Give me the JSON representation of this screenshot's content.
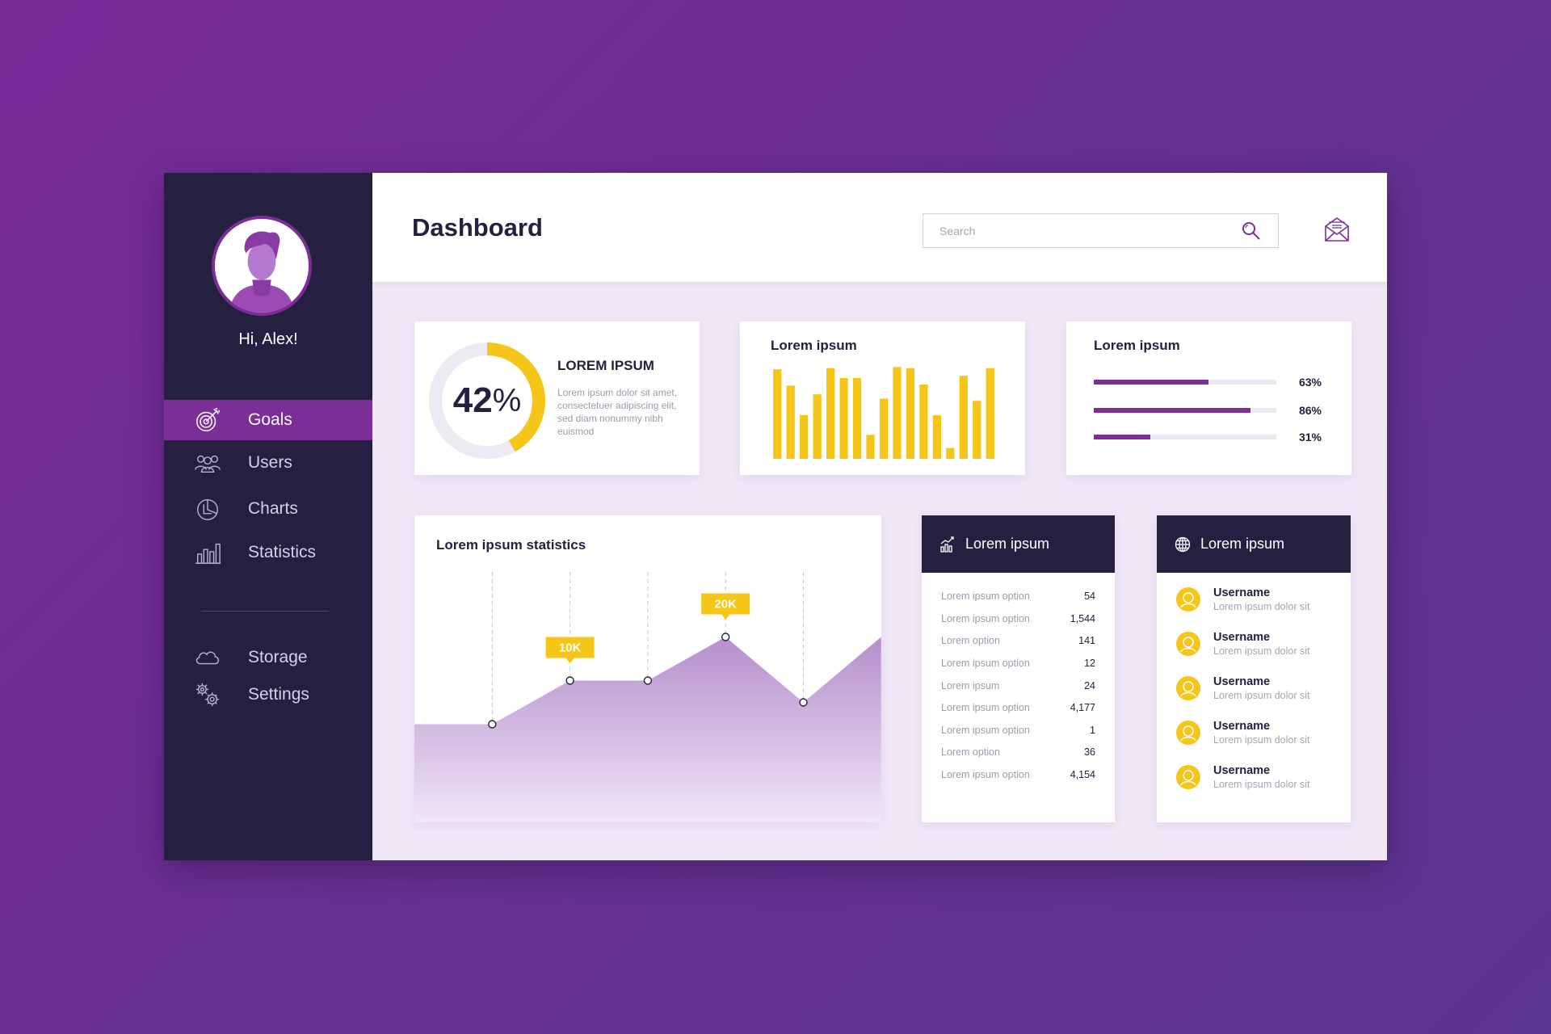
{
  "sidebar": {
    "greeting": "Hi, Alex!",
    "nav_main": [
      {
        "label": "Goals",
        "icon": "target-icon",
        "active": true
      },
      {
        "label": "Users",
        "icon": "users-icon",
        "active": false
      },
      {
        "label": "Charts",
        "icon": "pie-chart-icon",
        "active": false
      },
      {
        "label": "Statistics",
        "icon": "bar-chart-icon",
        "active": false
      }
    ],
    "nav_secondary": [
      {
        "label": "Storage",
        "icon": "cloud-icon"
      },
      {
        "label": "Settings",
        "icon": "gears-icon"
      }
    ]
  },
  "header": {
    "title": "Dashboard",
    "search_placeholder": "Search"
  },
  "cards": {
    "donut": {
      "value": "42",
      "unit": "%",
      "percent": 42,
      "title": "LOREM IPSUM",
      "description": "Lorem ipsum dolor sit amet, consectetuer adipiscing elit, sed diam nonummy nibh euismod"
    },
    "bars": {
      "title": "Lorem ipsum"
    },
    "progress": {
      "title": "Lorem ipsum",
      "items": [
        {
          "label": "63%",
          "value": 63
        },
        {
          "label": "86%",
          "value": 86
        },
        {
          "label": "31%",
          "value": 31
        }
      ]
    },
    "statistics": {
      "title": "Lorem ipsum statistics"
    },
    "options": {
      "title": "Lorem ipsum",
      "rows": [
        {
          "label": "Lorem ipsum option",
          "value": "54"
        },
        {
          "label": "Lorem ipsum option",
          "value": "1,544"
        },
        {
          "label": "Lorem option",
          "value": "141"
        },
        {
          "label": "Lorem ipsum option",
          "value": "12"
        },
        {
          "label": "Lorem ipsum",
          "value": "24"
        },
        {
          "label": "Lorem ipsum option",
          "value": "4,177"
        },
        {
          "label": "Lorem ipsum option",
          "value": "1"
        },
        {
          "label": "Lorem option",
          "value": "36"
        },
        {
          "label": "Lorem ipsum option",
          "value": "4,154"
        }
      ]
    },
    "users": {
      "title": "Lorem ipsum",
      "rows": [
        {
          "name": "Username",
          "sub": "Lorem ipsum dolor sit"
        },
        {
          "name": "Username",
          "sub": "Lorem ipsum dolor sit"
        },
        {
          "name": "Username",
          "sub": "Lorem ipsum dolor sit"
        },
        {
          "name": "Username",
          "sub": "Lorem ipsum dolor sit"
        },
        {
          "name": "Username",
          "sub": "Lorem ipsum dolor sit"
        }
      ]
    }
  },
  "colors": {
    "accent": "#7b2f96",
    "yellow": "#f5c518",
    "dark": "#25203f",
    "area": "#b58fcc"
  },
  "chart_data": [
    {
      "type": "bar",
      "values": [
        82,
        67,
        40,
        59,
        83,
        74,
        74,
        22,
        55,
        84,
        83,
        68,
        40,
        10,
        76,
        53,
        83
      ],
      "ylim": [
        0,
        85
      ],
      "grid": false
    },
    {
      "type": "area",
      "x": [
        0,
        1,
        2,
        3,
        4,
        5,
        6
      ],
      "values": [
        9,
        9,
        13,
        13,
        17,
        11,
        17
      ],
      "ylim": [
        0,
        24
      ],
      "markers": [
        1,
        2,
        3,
        4,
        5
      ],
      "annotations": [
        {
          "index": 2,
          "label": "10K"
        },
        {
          "index": 4,
          "label": "20K"
        }
      ]
    }
  ]
}
